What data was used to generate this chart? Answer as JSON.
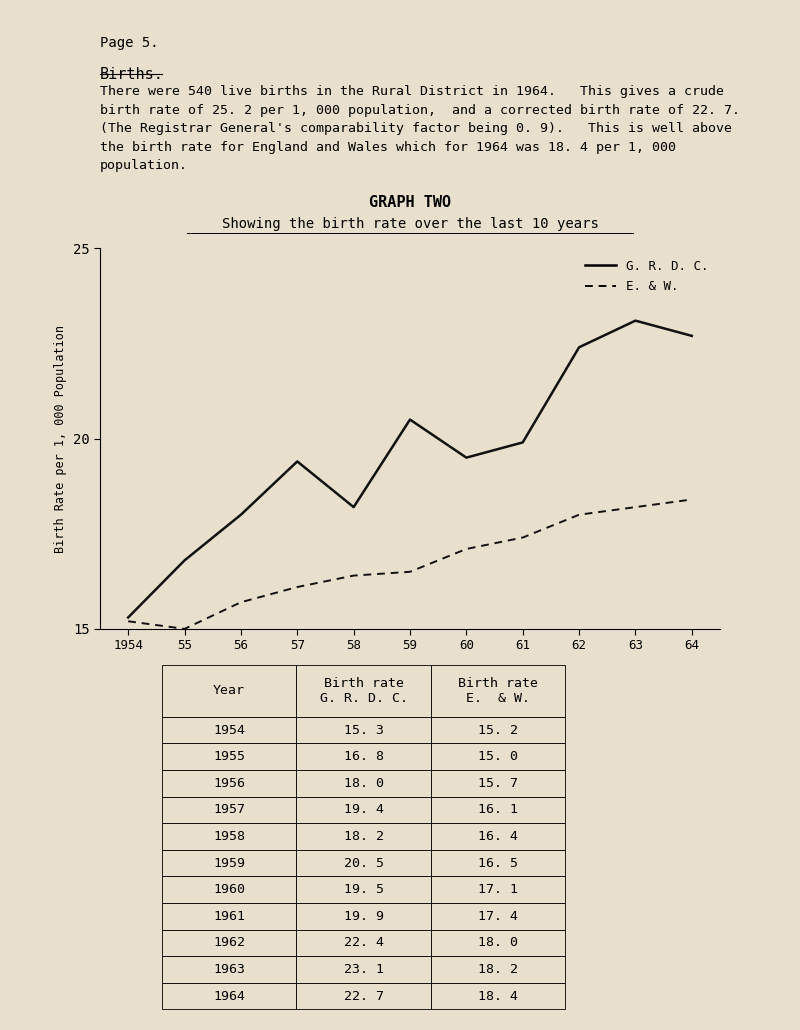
{
  "page_label": "Page 5.",
  "title_text": "Births.",
  "body_text": [
    "There were 540 live births in the Rural District in 1964.   This gives a crude",
    "birth rate of 25. 2 per 1, 000 population,  and a corrected birth rate of 22. 7.",
    "(The Registrar General's comparability factor being 0. 9).   This is well above",
    "the birth rate for England and Wales which for 1964 was 18. 4 per 1, 000",
    "population."
  ],
  "graph_title": "GRAPH TWO",
  "graph_subtitle": "Showing the birth rate over the last 10 years",
  "ylabel": "Birth Rate per 1, 000 Population",
  "years": [
    1954,
    1955,
    1956,
    1957,
    1958,
    1959,
    1960,
    1961,
    1962,
    1963,
    1964
  ],
  "grdc_values": [
    15.3,
    16.8,
    18.0,
    19.4,
    18.2,
    20.5,
    19.5,
    19.9,
    22.4,
    23.1,
    22.7
  ],
  "ew_values": [
    15.2,
    15.0,
    15.7,
    16.1,
    16.4,
    16.5,
    17.1,
    17.4,
    18.0,
    18.2,
    18.4
  ],
  "ylim": [
    15,
    25
  ],
  "yticks": [
    15,
    20,
    25
  ],
  "ytick_labels": [
    "15",
    "20",
    "25"
  ],
  "xtick_labels": [
    "1954",
    "55",
    "56",
    "57",
    "58",
    "59",
    "60",
    "61",
    "62",
    "63",
    "64"
  ],
  "legend_grdc": "G. R. D. C.",
  "legend_ew": "E. & W.",
  "bg_color": "#e8e0cc",
  "line_color_grdc": "#111111",
  "line_color_ew": "#111111",
  "table_years": [
    "1954",
    "1955",
    "1956",
    "1957",
    "1958",
    "1959",
    "1960",
    "1961",
    "1962",
    "1963",
    "1964"
  ],
  "table_grdc": [
    "15. 3",
    "16. 8",
    "18. 0",
    "19. 4",
    "18. 2",
    "20. 5",
    "19. 5",
    "19. 9",
    "22. 4",
    "23. 1",
    "22. 7"
  ],
  "table_ew": [
    "15. 2",
    "15. 0",
    "15. 7",
    "16. 1",
    "16. 4",
    "16. 5",
    "17. 1",
    "17. 4",
    "18. 0",
    "18. 2",
    "18. 4"
  ]
}
